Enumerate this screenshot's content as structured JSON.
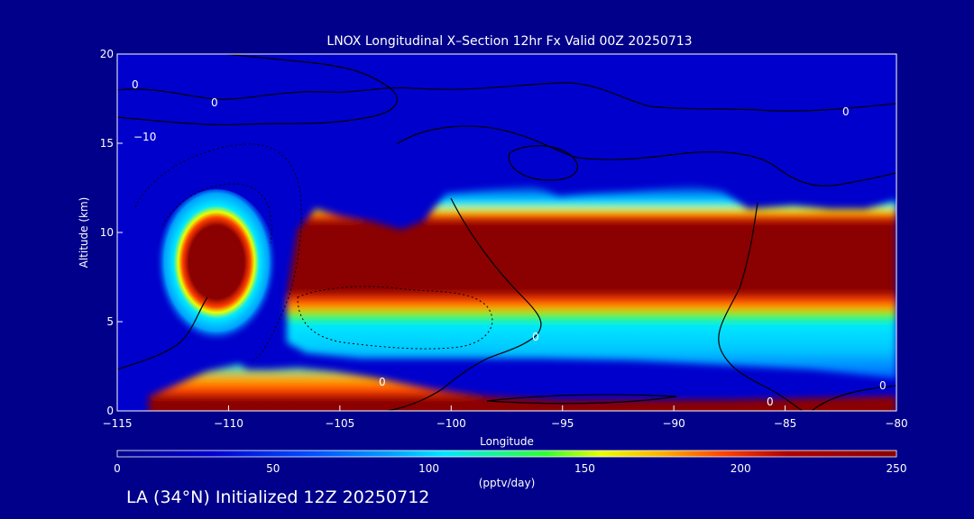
{
  "title": "LNOX Longitudinal X–Section 12hr  Fx Valid 00Z 20250713",
  "footer": "LA (34°N) Initialized 12Z 20250712",
  "colors": {
    "background": "#00008b",
    "text": "#ffffff",
    "contour": "#000000",
    "colormap": [
      "#00008b",
      "#0000cd",
      "#0050ff",
      "#00a0ff",
      "#00e8ff",
      "#30ff30",
      "#e8ff00",
      "#ffb000",
      "#ff4000",
      "#b00000",
      "#8b0000"
    ]
  },
  "chart_data": {
    "type": "heatmap",
    "title": "LNOX Longitudinal X–Section 12hr  Fx Valid 00Z 20250713",
    "xlabel": "Longitude",
    "ylabel": "Altitude (km)",
    "xlim": [
      -115,
      -80
    ],
    "ylim": [
      0,
      20
    ],
    "xticks": [
      -115,
      -110,
      -105,
      -100,
      -95,
      -90,
      -85,
      -80
    ],
    "xtick_labels": [
      "−115",
      "−110",
      "−105",
      "−100",
      "−95",
      "−90",
      "−85",
      "−80"
    ],
    "yticks": [
      0,
      5,
      10,
      15,
      20
    ],
    "colorbar": {
      "label": "(pptv/day)",
      "range": [
        0,
        250
      ],
      "ticks": [
        0,
        50,
        100,
        150,
        200,
        250
      ]
    },
    "contour_labels": [
      "0",
      "0",
      "0",
      "−10",
      "0",
      "0",
      "0",
      "0"
    ],
    "maxima_bands": [
      {
        "lon_start": -112,
        "lon_end": -109.5,
        "alt_base": 6.5,
        "alt_top": 10
      },
      {
        "lon_start": -107.5,
        "lon_end": -80,
        "alt_base": 6.5,
        "alt_top": 12
      },
      {
        "lon_start": -112,
        "lon_end": -80,
        "alt_base": 0,
        "alt_top": 2.5
      }
    ]
  }
}
